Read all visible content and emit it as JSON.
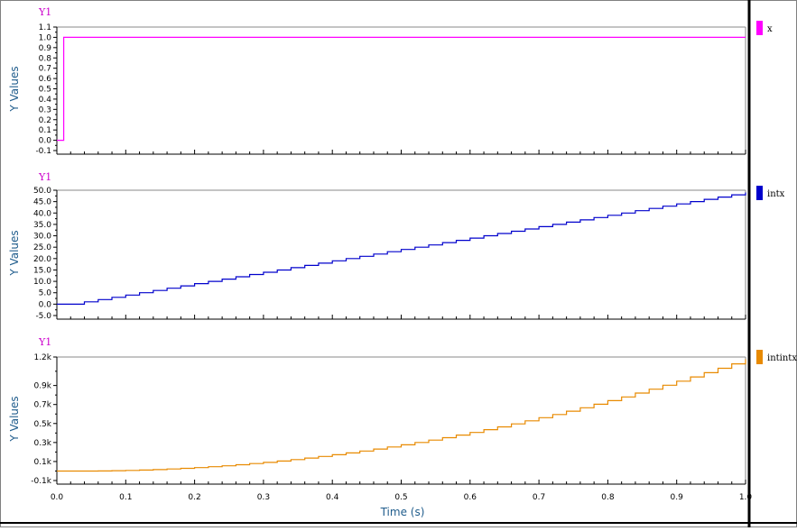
{
  "chart_data": [
    {
      "type": "line",
      "plot_tag": "Y1",
      "ylabel": "Y Values",
      "ylim": [
        -0.1,
        1.1
      ],
      "yticks": [
        {
          "v": 1.1,
          "label": "1.1"
        },
        {
          "v": 1.0,
          "label": "1.0"
        },
        {
          "v": 0.9,
          "label": "0.9"
        },
        {
          "v": 0.8,
          "label": "0.8"
        },
        {
          "v": 0.7,
          "label": "0.7"
        },
        {
          "v": 0.6,
          "label": "0.6"
        },
        {
          "v": 0.5,
          "label": "0.5"
        },
        {
          "v": 0.4,
          "label": "0.4"
        },
        {
          "v": 0.3,
          "label": "0.3"
        },
        {
          "v": 0.2,
          "label": "0.2"
        },
        {
          "v": 0.1,
          "label": "0.1"
        },
        {
          "v": 0.0,
          "label": "0.0"
        },
        {
          "v": -0.1,
          "label": "-0.1"
        }
      ],
      "series": [
        {
          "name": "x",
          "color": "#ff00ff",
          "step": true,
          "x": [
            0,
            0.01,
            1.0
          ],
          "y": [
            0,
            1,
            1
          ]
        }
      ]
    },
    {
      "type": "line",
      "plot_tag": "Y1",
      "ylabel": "Y Values",
      "ylim": [
        -5,
        50
      ],
      "yticks": [
        {
          "v": 50,
          "label": "50.0"
        },
        {
          "v": 45,
          "label": "45.0"
        },
        {
          "v": 40,
          "label": "40.0"
        },
        {
          "v": 35,
          "label": "35.0"
        },
        {
          "v": 30,
          "label": "30.0"
        },
        {
          "v": 25,
          "label": "25.0"
        },
        {
          "v": 20,
          "label": "20.0"
        },
        {
          "v": 15,
          "label": "15.0"
        },
        {
          "v": 10,
          "label": "10.0"
        },
        {
          "v": 5,
          "label": "5.0"
        },
        {
          "v": 0,
          "label": "0.0"
        },
        {
          "v": -5,
          "label": "-5.0"
        }
      ],
      "series": [
        {
          "name": "intx",
          "color": "#0000cc",
          "step": true,
          "x": [
            0.0,
            0.02,
            0.04,
            0.06,
            0.08,
            0.1,
            0.12,
            0.14,
            0.16,
            0.18,
            0.2,
            0.22,
            0.24,
            0.26,
            0.28,
            0.3,
            0.32,
            0.34,
            0.36,
            0.38,
            0.4,
            0.42,
            0.44,
            0.46,
            0.48,
            0.5,
            0.52,
            0.54,
            0.56,
            0.58,
            0.6,
            0.62,
            0.64,
            0.66,
            0.68,
            0.7,
            0.72,
            0.74,
            0.76,
            0.78,
            0.8,
            0.82,
            0.84,
            0.86,
            0.88,
            0.9,
            0.92,
            0.94,
            0.96,
            0.98,
            1.0
          ],
          "y": [
            0,
            0,
            1,
            2,
            3,
            4,
            5,
            6,
            7,
            8,
            9,
            10,
            11,
            12,
            13,
            14,
            15,
            16,
            17,
            18,
            19,
            20,
            21,
            22,
            23,
            24,
            25,
            26,
            27,
            28,
            29,
            30,
            31,
            32,
            33,
            34,
            35,
            36,
            37,
            38,
            39,
            40,
            41,
            42,
            43,
            44,
            45,
            46,
            47,
            48,
            49
          ]
        }
      ]
    },
    {
      "type": "line",
      "plot_tag": "Y1",
      "ylabel": "Y Values",
      "ylim": [
        -0.1,
        1.2
      ],
      "yticks": [
        {
          "v": 1.2,
          "label": "1.2k"
        },
        {
          "v": 0.9,
          "label": "0.9k"
        },
        {
          "v": 0.7,
          "label": "0.7k"
        },
        {
          "v": 0.5,
          "label": "0.5k"
        },
        {
          "v": 0.3,
          "label": "0.3k"
        },
        {
          "v": 0.1,
          "label": "0.1k"
        },
        {
          "v": -0.1,
          "label": "-0.1k"
        }
      ],
      "series": [
        {
          "name": "intintx",
          "color": "#e88a00",
          "step": true,
          "x": [
            0.0,
            0.02,
            0.04,
            0.06,
            0.08,
            0.1,
            0.12,
            0.14,
            0.16,
            0.18,
            0.2,
            0.22,
            0.24,
            0.26,
            0.28,
            0.3,
            0.32,
            0.34,
            0.36,
            0.38,
            0.4,
            0.42,
            0.44,
            0.46,
            0.48,
            0.5,
            0.52,
            0.54,
            0.56,
            0.58,
            0.6,
            0.62,
            0.64,
            0.66,
            0.68,
            0.7,
            0.72,
            0.74,
            0.76,
            0.78,
            0.8,
            0.82,
            0.84,
            0.86,
            0.88,
            0.9,
            0.92,
            0.94,
            0.96,
            0.98,
            1.0
          ],
          "y": [
            0,
            0,
            0,
            0.001,
            0.003,
            0.006,
            0.01,
            0.015,
            0.021,
            0.028,
            0.036,
            0.045,
            0.055,
            0.066,
            0.078,
            0.091,
            0.105,
            0.12,
            0.136,
            0.153,
            0.171,
            0.19,
            0.21,
            0.231,
            0.253,
            0.276,
            0.3,
            0.325,
            0.351,
            0.378,
            0.406,
            0.435,
            0.465,
            0.496,
            0.528,
            0.561,
            0.595,
            0.63,
            0.666,
            0.703,
            0.741,
            0.78,
            0.82,
            0.861,
            0.903,
            0.946,
            0.99,
            1.035,
            1.081,
            1.128,
            1.176
          ]
        }
      ]
    }
  ],
  "x_axis": {
    "label": "Time (s)",
    "xlim": [
      0.0,
      1.0
    ],
    "ticks": [
      {
        "v": 0.0,
        "label": "0.0"
      },
      {
        "v": 0.1,
        "label": "0.1"
      },
      {
        "v": 0.2,
        "label": "0.2"
      },
      {
        "v": 0.3,
        "label": "0.3"
      },
      {
        "v": 0.4,
        "label": "0.4"
      },
      {
        "v": 0.5,
        "label": "0.5"
      },
      {
        "v": 0.6,
        "label": "0.6"
      },
      {
        "v": 0.7,
        "label": "0.7"
      },
      {
        "v": 0.8,
        "label": "0.8"
      },
      {
        "v": 0.9,
        "label": "0.9"
      },
      {
        "v": 1.0,
        "label": "1.0"
      }
    ]
  }
}
